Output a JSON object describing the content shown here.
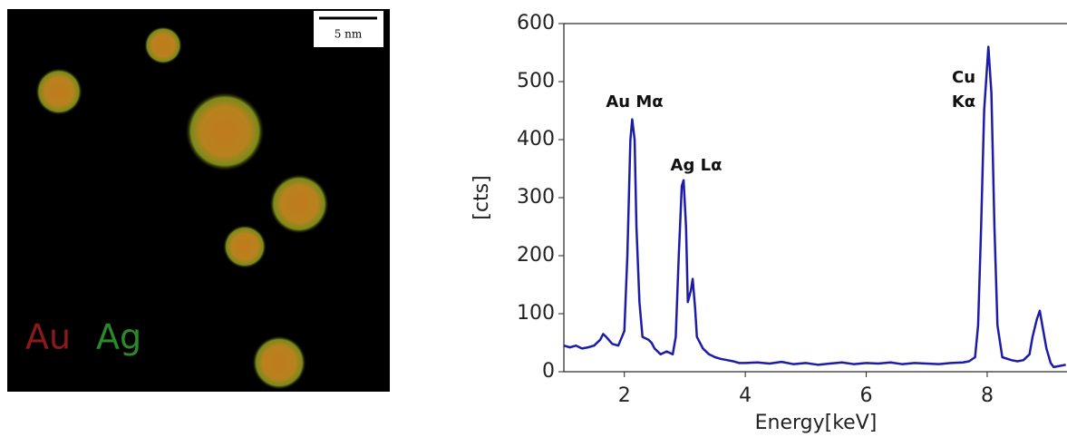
{
  "image": {
    "scale_bar": "5 nm",
    "labels": [
      "Au",
      "Ag"
    ]
  },
  "chart_data": {
    "type": "line",
    "x_label": "Energy[keV]",
    "y_label": "[cts]",
    "annotations": [
      "Au Mα",
      "Ag Lα",
      "Cu",
      "Kα"
    ],
    "color": "#1c1ca8",
    "x": [
      1.0,
      1.1,
      1.2,
      1.3,
      1.4,
      1.5,
      1.6,
      1.65,
      1.7,
      1.8,
      1.9,
      2.0,
      2.05,
      2.1,
      2.13,
      2.17,
      2.2,
      2.25,
      2.3,
      2.4,
      2.45,
      2.5,
      2.6,
      2.7,
      2.8,
      2.85,
      2.9,
      2.95,
      2.98,
      3.02,
      3.05,
      3.1,
      3.13,
      3.17,
      3.2,
      3.3,
      3.4,
      3.5,
      3.6,
      3.7,
      3.8,
      3.9,
      4.0,
      4.2,
      4.4,
      4.6,
      4.8,
      5.0,
      5.2,
      5.4,
      5.6,
      5.8,
      6.0,
      6.2,
      6.4,
      6.6,
      6.8,
      7.0,
      7.2,
      7.4,
      7.6,
      7.7,
      7.8,
      7.85,
      7.9,
      7.95,
      8.02,
      8.07,
      8.12,
      8.17,
      8.25,
      8.4,
      8.5,
      8.6,
      8.7,
      8.75,
      8.82,
      8.87,
      8.92,
      8.98,
      9.05,
      9.1,
      9.2,
      9.3
    ],
    "values": [
      45,
      42,
      45,
      40,
      42,
      45,
      55,
      65,
      60,
      48,
      45,
      70,
      200,
      400,
      435,
      400,
      250,
      120,
      60,
      55,
      50,
      40,
      30,
      35,
      30,
      60,
      200,
      320,
      330,
      250,
      120,
      140,
      160,
      110,
      60,
      40,
      30,
      25,
      22,
      20,
      18,
      15,
      15,
      16,
      14,
      17,
      13,
      15,
      12,
      14,
      16,
      13,
      15,
      14,
      16,
      13,
      15,
      14,
      13,
      15,
      16,
      18,
      25,
      80,
      250,
      450,
      560,
      480,
      250,
      80,
      25,
      20,
      18,
      20,
      30,
      60,
      90,
      105,
      75,
      40,
      15,
      8,
      10,
      12
    ],
    "xlim": [
      1,
      9.32
    ],
    "ylim": [
      0,
      600
    ],
    "xticks": [
      2,
      4,
      6,
      8
    ],
    "yticks": [
      0,
      100,
      200,
      300,
      400,
      500,
      600
    ]
  }
}
